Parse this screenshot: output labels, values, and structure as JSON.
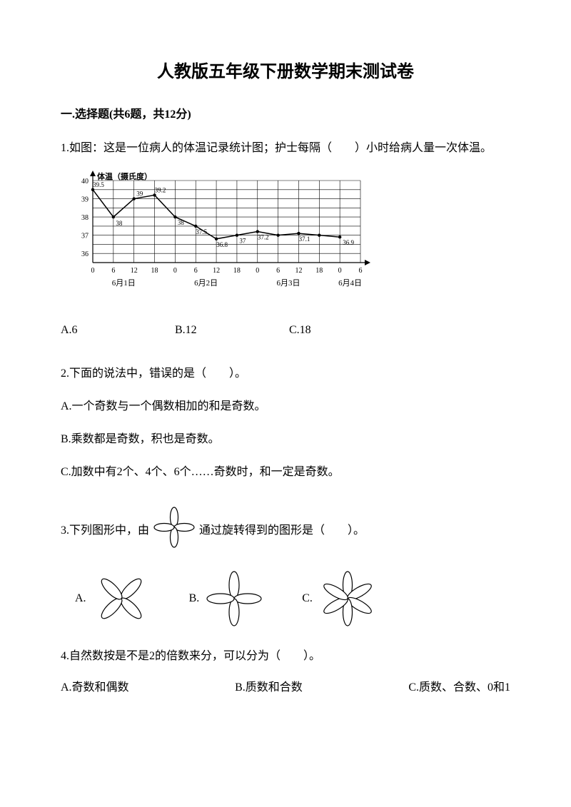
{
  "title": "人教版五年级下册数学期末测试卷",
  "section1": {
    "header": "一.选择题(共6题，共12分)"
  },
  "q1": {
    "text": "1.如图：这是一位病人的体温记录统计图；护士每隔（　　）小时给病人量一次体温。",
    "chart": {
      "ylabel": "体温（摄氏度）",
      "ylim": [
        35.5,
        40
      ],
      "yticks": [
        36,
        37,
        38,
        39,
        40
      ],
      "grid_color": "#000000",
      "line_color": "#000000",
      "background": "#ffffff",
      "labels_fontsize": 10,
      "dates": [
        "6月1日",
        "6月2日",
        "6月3日",
        "6月4日"
      ],
      "hours": [
        "0",
        "6",
        "12",
        "18",
        "0",
        "6",
        "12",
        "18",
        "0",
        "6",
        "12",
        "18",
        "0",
        "6"
      ],
      "values": [
        39.5,
        38,
        39,
        39.2,
        38,
        37.5,
        36.8,
        37,
        37.2,
        37,
        37.1,
        37,
        36.9
      ],
      "value_labels": [
        "39.5",
        "38",
        "39",
        "39.2",
        "38",
        "37.5",
        "36.8",
        "37",
        "37.2",
        "",
        "37.1",
        "",
        "36.9"
      ]
    },
    "optA": "A.6",
    "optB": "B.12",
    "optC": "C.18"
  },
  "q2": {
    "text": "2.下面的说法中，错误的是（　　）。",
    "optA": "A.一个奇数与一个偶数相加的和是奇数。",
    "optB": "B.乘数都是奇数，积也是奇数。",
    "optC": "C.加数中有2个、4个、6个……奇数时，和一定是奇数。"
  },
  "q3": {
    "text_before": "3.下列图形中，由",
    "text_after": "通过旋转得到的图形是（　　）。",
    "labelA": "A.",
    "labelB": "B.",
    "labelC": "C.",
    "flower": {
      "petal_color": "#000000",
      "fill_color": "#ffffff",
      "ref_size": 60,
      "opt_size": 80
    }
  },
  "q4": {
    "text": "4.自然数按是不是2的倍数来分，可以分为（　　）。",
    "optA": "A.奇数和偶数",
    "optB": "B.质数和合数",
    "optC": "C.质数、合数、0和1"
  }
}
